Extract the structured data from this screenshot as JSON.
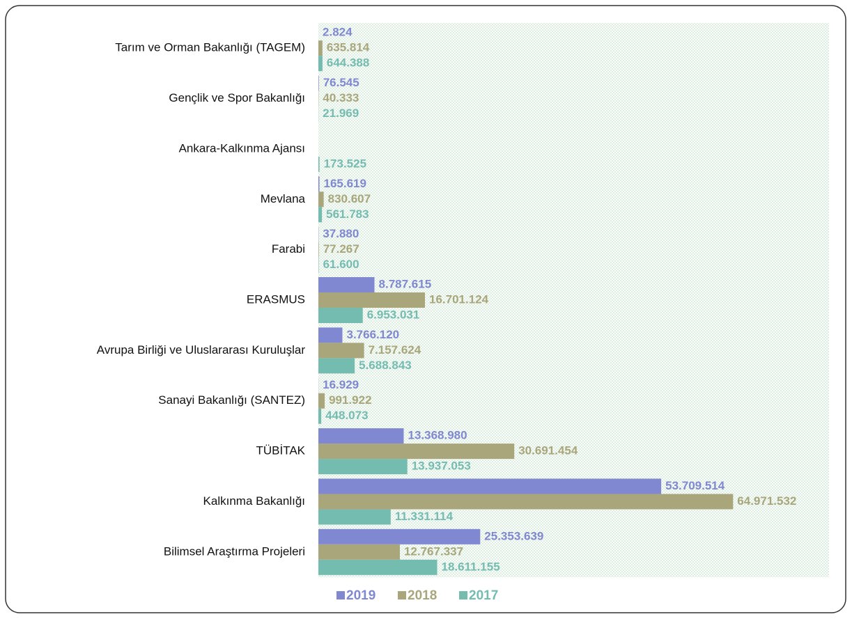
{
  "chart_data": {
    "type": "hbar",
    "categories": [
      "Tarım ve Orman Bakanlığı (TAGEM)",
      "Gençlik ve Spor Bakanlığı",
      "Ankara-Kalkınma Ajansı",
      "Mevlana",
      "Farabi",
      "ERASMUS",
      "Avrupa Birliği ve Uluslararası Kuruluşlar",
      "Sanayi Bakanlığı (SANTEZ)",
      "TÜBİTAK",
      "Kalkınma Bakanlığı",
      "Bilimsel Araştırma Projeleri"
    ],
    "xlim": [
      0,
      80000000
    ],
    "legend": "bottom",
    "series": [
      {
        "name": "2019",
        "color": "#7f88d0",
        "values": [
          2824,
          76545,
          null,
          165619,
          37880,
          8787615,
          3766120,
          16929,
          13368980,
          53709514,
          25353639
        ],
        "value_labels": [
          "2.824",
          "76.545",
          null,
          "165.619",
          "37.880",
          "8.787.615",
          "3.766.120",
          "16.929",
          "13.368.980",
          "53.709.514",
          "25.353.639"
        ]
      },
      {
        "name": "2018",
        "color": "#a8a67a",
        "values": [
          635814,
          40333,
          null,
          830607,
          77267,
          16701124,
          7157624,
          991922,
          30691454,
          64971532,
          12767337
        ],
        "value_labels": [
          "635.814",
          "40.333",
          null,
          "830.607",
          "77.267",
          "16.701.124",
          "7.157.624",
          "991.922",
          "30.691.454",
          "64.971.532",
          "12.767.337"
        ]
      },
      {
        "name": "2017",
        "color": "#74bcb0",
        "values": [
          644388,
          21969,
          173525,
          561783,
          61600,
          6953031,
          5688843,
          448073,
          13937053,
          11331114,
          18611155
        ],
        "value_labels": [
          "644.388",
          "21.969",
          "173.525",
          "561.783",
          "61.600",
          "6.953.031",
          "5.688.843",
          "448.073",
          "13.937.053",
          "11.331.114",
          "18.611.155"
        ]
      }
    ]
  }
}
